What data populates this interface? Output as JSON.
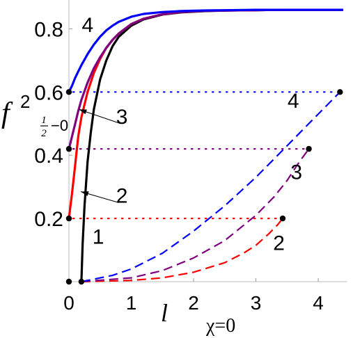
{
  "chart_data": {
    "type": "line",
    "xlim": [
      0,
      4.4
    ],
    "ylim": [
      0,
      0.86
    ],
    "grid": false,
    "xticks": [
      "0",
      "1",
      "2",
      "3",
      "4"
    ],
    "yticks": [
      "0.2",
      "0.4",
      "0.6",
      "0.8"
    ],
    "xlabel": "l",
    "ylabel": {
      "main": "f",
      "sup": "2",
      "sub_num": "1",
      "sub_den": "2",
      "sub_rest": "−0"
    },
    "annotation": "χ=0",
    "solid_series": [
      {
        "label": "1",
        "color": "#000000",
        "x": [
          0.2,
          0.22,
          0.25,
          0.3,
          0.35,
          0.4,
          0.5,
          0.6,
          0.7,
          0.8,
          1.0,
          1.2,
          1.5,
          1.8,
          2.2,
          2.6,
          3.0,
          3.5,
          4.0,
          4.4
        ],
        "y": [
          0.0,
          0.12,
          0.24,
          0.38,
          0.47,
          0.545,
          0.64,
          0.7,
          0.745,
          0.775,
          0.81,
          0.83,
          0.845,
          0.852,
          0.856,
          0.858,
          0.859,
          0.86,
          0.86,
          0.86
        ]
      },
      {
        "label": "2",
        "color": "#ff0000",
        "x": [
          0.0,
          0.05,
          0.1,
          0.15,
          0.2,
          0.3,
          0.4,
          0.5,
          0.6,
          0.7,
          0.8,
          1.0,
          1.2,
          1.5,
          1.8,
          2.2,
          2.6,
          3.0,
          3.5,
          4.0,
          4.4
        ],
        "y": [
          0.2,
          0.28,
          0.37,
          0.46,
          0.52,
          0.6,
          0.66,
          0.705,
          0.74,
          0.765,
          0.785,
          0.815,
          0.832,
          0.846,
          0.853,
          0.857,
          0.858,
          0.859,
          0.86,
          0.86,
          0.86
        ]
      },
      {
        "label": "3",
        "color": "#800080",
        "x": [
          0.0,
          0.05,
          0.1,
          0.15,
          0.2,
          0.3,
          0.4,
          0.5,
          0.6,
          0.7,
          0.8,
          1.0,
          1.2,
          1.5,
          1.8,
          2.2,
          2.6,
          3.0,
          3.5,
          4.0,
          4.4
        ],
        "y": [
          0.42,
          0.46,
          0.5,
          0.54,
          0.575,
          0.63,
          0.675,
          0.71,
          0.74,
          0.765,
          0.785,
          0.815,
          0.832,
          0.846,
          0.853,
          0.857,
          0.858,
          0.859,
          0.86,
          0.86,
          0.86
        ]
      },
      {
        "label": "4",
        "color": "#0000ff",
        "x": [
          0.0,
          0.05,
          0.1,
          0.15,
          0.2,
          0.3,
          0.4,
          0.5,
          0.6,
          0.7,
          0.8,
          1.0,
          1.2,
          1.5,
          1.8,
          2.2,
          2.6,
          3.0,
          3.5,
          4.0,
          4.4
        ],
        "y": [
          0.6,
          0.62,
          0.645,
          0.665,
          0.685,
          0.72,
          0.75,
          0.775,
          0.795,
          0.81,
          0.822,
          0.838,
          0.847,
          0.853,
          0.856,
          0.858,
          0.859,
          0.86,
          0.86,
          0.86,
          0.86
        ]
      }
    ],
    "dashed_series": [
      {
        "label": "2",
        "color": "#ff0000",
        "x": [
          0.2,
          1.0,
          1.5,
          2.0,
          2.5,
          2.8,
          3.0,
          3.2,
          3.35,
          3.43
        ],
        "y": [
          0.0,
          0.004,
          0.012,
          0.03,
          0.06,
          0.09,
          0.115,
          0.15,
          0.18,
          0.2
        ]
      },
      {
        "label": "3",
        "color": "#800080",
        "x": [
          0.2,
          1.0,
          1.5,
          2.0,
          2.5,
          3.0,
          3.3,
          3.5,
          3.7,
          3.85
        ],
        "y": [
          0.0,
          0.012,
          0.035,
          0.075,
          0.13,
          0.21,
          0.27,
          0.32,
          0.38,
          0.42
        ]
      },
      {
        "label": "4",
        "color": "#0000ff",
        "x": [
          0.2,
          0.7,
          1.0,
          1.5,
          2.0,
          2.5,
          3.0,
          3.5,
          4.0,
          4.35
        ],
        "y": [
          0.0,
          0.02,
          0.04,
          0.09,
          0.16,
          0.24,
          0.33,
          0.43,
          0.53,
          0.6
        ]
      }
    ],
    "endpoints": [
      {
        "x": 0.0,
        "y": 0.0
      },
      {
        "x": 0.2,
        "y": 0.0
      },
      {
        "x": 0.0,
        "y": 0.2
      },
      {
        "x": 0.0,
        "y": 0.42
      },
      {
        "x": 0.0,
        "y": 0.6
      },
      {
        "x": 3.43,
        "y": 0.2
      },
      {
        "x": 3.85,
        "y": 0.42
      },
      {
        "x": 4.35,
        "y": 0.6
      }
    ],
    "dotted_links": [
      {
        "color": "#ff0000",
        "y": 0.2,
        "x_from": 0.0,
        "x_to": 3.43
      },
      {
        "color": "#800080",
        "y": 0.42,
        "x_from": 0.0,
        "x_to": 3.85
      },
      {
        "color": "#0000ff",
        "y": 0.6,
        "x_from": 0.0,
        "x_to": 4.35
      }
    ],
    "labels": [
      {
        "text": "4",
        "x": 0.3,
        "y": 0.79
      },
      {
        "text": "3",
        "x": 0.85,
        "y": 0.5
      },
      {
        "text": "2",
        "x": 0.85,
        "y": 0.25
      },
      {
        "text": "1",
        "x": 0.47,
        "y": 0.12
      },
      {
        "text": "4",
        "x": 3.6,
        "y": 0.55
      },
      {
        "text": "3",
        "x": 3.65,
        "y": 0.325
      },
      {
        "text": "2",
        "x": 3.37,
        "y": 0.1
      }
    ],
    "arrows": [
      {
        "from": {
          "x": 0.83,
          "y": 0.5
        },
        "to": {
          "x": 0.16,
          "y": 0.545
        }
      },
      {
        "from": {
          "x": 0.8,
          "y": 0.25
        },
        "to": {
          "x": 0.19,
          "y": 0.285
        }
      }
    ]
  }
}
